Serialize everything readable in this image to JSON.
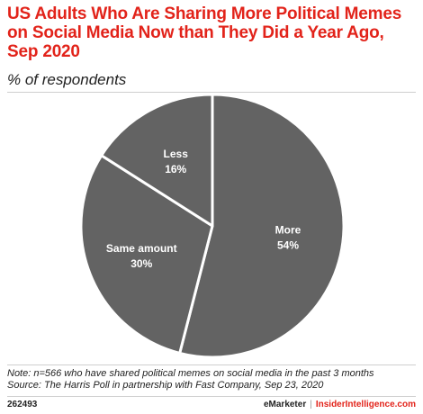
{
  "title": "US Adults Who Are Sharing More Political Memes on Social Media Now than They Did a Year Ago, Sep 2020",
  "subtitle": "% of respondents",
  "chart_data": {
    "type": "pie",
    "slices": [
      {
        "label": "More",
        "value": 54,
        "display": "54%"
      },
      {
        "label": "Same amount",
        "value": 30,
        "display": "30%"
      },
      {
        "label": "Less",
        "value": 16,
        "display": "16%"
      }
    ],
    "slice_color": "#636363",
    "label_color": "#ffffff",
    "start": "12 o'clock",
    "direction": "clockwise"
  },
  "notes": {
    "note": "Note: n=566 who have shared political memes on social media in the past 3 months",
    "source": "Source: The Harris Poll in partnership with Fast Company, Sep 23, 2020"
  },
  "footer": {
    "id": "262493",
    "brand": "eMarketer",
    "separator": "|",
    "brand2": "InsiderIntelligence.com"
  }
}
